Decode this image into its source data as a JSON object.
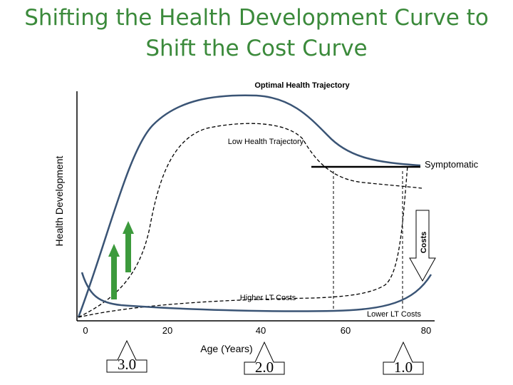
{
  "slide": {
    "title_line1": "Shifting the Health Development Curve to",
    "title_line2": "Shift the Cost Curve"
  },
  "diagram": {
    "y_axis_label": "Health Development",
    "x_axis_label": "Age (Years)",
    "x_ticks": [
      "0",
      "20",
      "40",
      "60",
      "80"
    ],
    "optimal_label": "Optimal Health Trajectory",
    "low_label": "Low Health Trajectory",
    "symptomatic_label": "Symptomatic",
    "costs_label": "Costs",
    "higher_costs_label": "Higher LT Costs",
    "lower_costs_label": "Lower LT Costs",
    "ratio_labels": [
      "3.0",
      "2.0",
      "1.0"
    ],
    "colors": {
      "title": "#3b8a3b",
      "curve": "#3a5475",
      "arrow_green": "#3c9a3c",
      "threshold": "#000000"
    }
  }
}
